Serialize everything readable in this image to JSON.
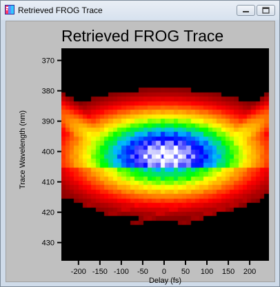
{
  "window": {
    "title": "Retrieved FROG Trace",
    "minimize_icon": "minimize-icon",
    "restore_icon": "restore-icon"
  },
  "chart_data": {
    "type": "heatmap",
    "title": "Retrieved FROG Trace",
    "xlabel": "Delay (fs)",
    "ylabel": "Trace Wavelength (nm)",
    "x_ticks": [
      -200,
      -150,
      -100,
      -50,
      0,
      50,
      100,
      150,
      200
    ],
    "y_ticks": [
      370,
      380,
      390,
      400,
      410,
      420,
      430
    ],
    "xlim": [
      -240,
      245
    ],
    "ylim": [
      366,
      436
    ],
    "colormap": [
      "#000000",
      "#8b0000",
      "#ff0000",
      "#ff8c00",
      "#ffff00",
      "#00ff00",
      "#00bbff",
      "#0000ff",
      "#ffffff"
    ],
    "peak": {
      "delay": 5,
      "wavelength": 401.5
    }
  }
}
